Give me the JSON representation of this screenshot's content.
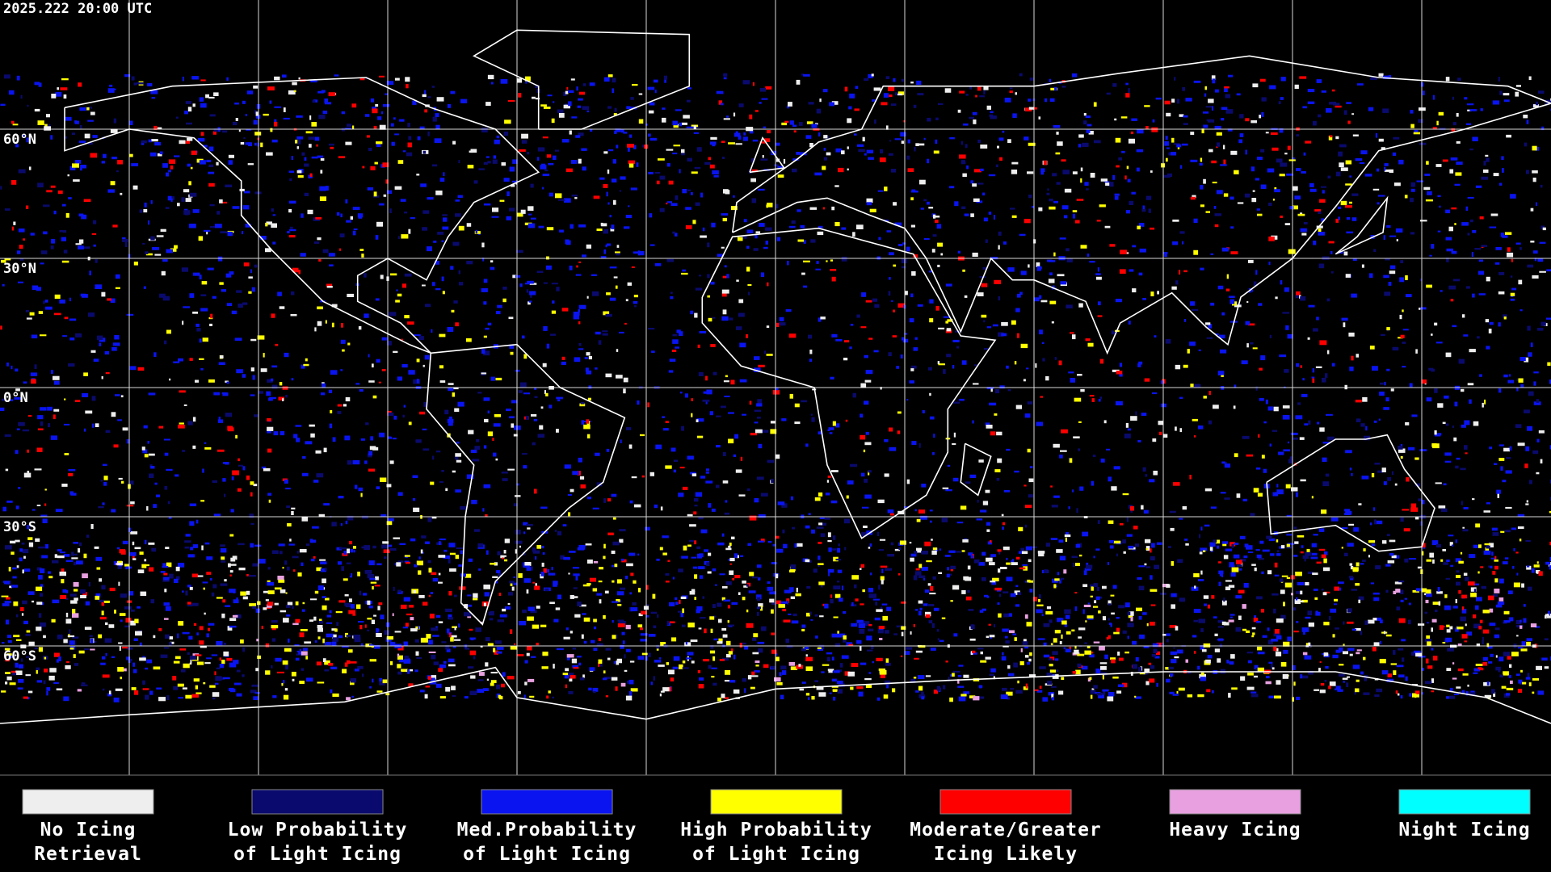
{
  "header": {
    "timestamp": "2025.222 20:00 UTC"
  },
  "map": {
    "latitude_labels": [
      "60°N",
      "30°N",
      "0°N",
      "30°S",
      "60°S"
    ]
  },
  "legend": [
    {
      "lines": [
        "No Icing",
        "Retrieval"
      ],
      "color": "#eeeeee"
    },
    {
      "lines": [
        "Low Probability",
        "of Light Icing"
      ],
      "color": "#0a0a6e"
    },
    {
      "lines": [
        "Med.Probability",
        "of Light Icing"
      ],
      "color": "#0a14f0"
    },
    {
      "lines": [
        "High Probability",
        "of Light Icing"
      ],
      "color": "#ffff00"
    },
    {
      "lines": [
        "Moderate/Greater",
        "Icing Likely"
      ],
      "color": "#ff0000"
    },
    {
      "lines": [
        "Heavy Icing"
      ],
      "color": "#e8a0e0"
    },
    {
      "lines": [
        "Night Icing"
      ],
      "color": "#00ffff"
    }
  ]
}
